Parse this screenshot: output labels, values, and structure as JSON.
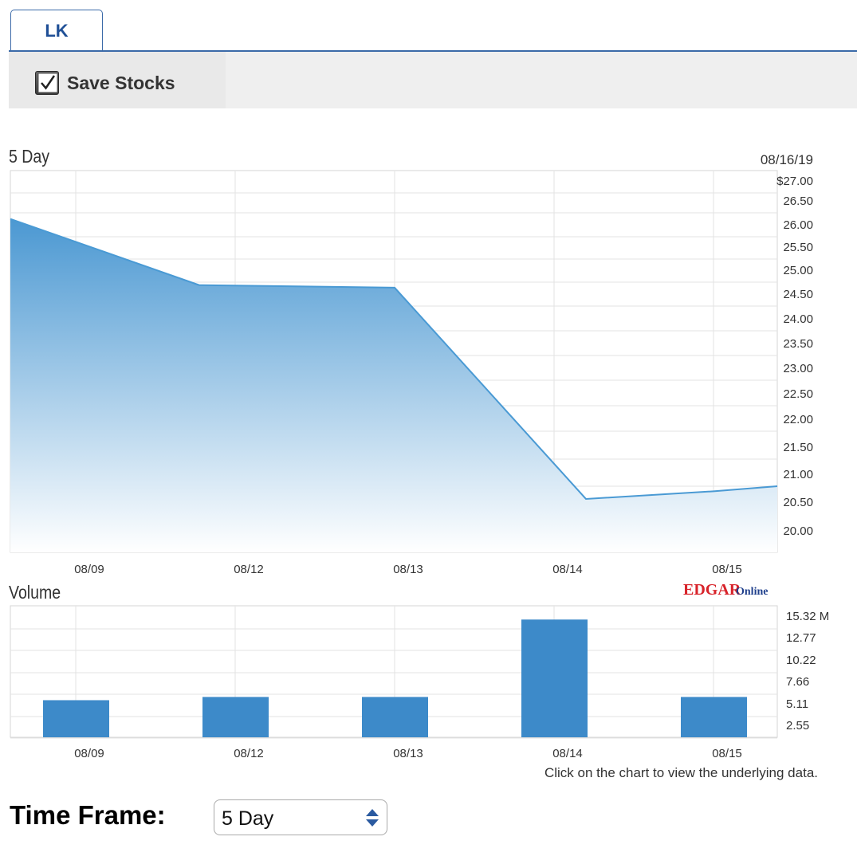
{
  "tabs": [
    {
      "label": "LK"
    }
  ],
  "save_stocks": {
    "label": "Save Stocks",
    "checked": true
  },
  "price_panel": {
    "title": "5 Day",
    "date": "08/16/19",
    "y_labels": [
      "$27.00",
      "26.50",
      "26.00",
      "25.50",
      "25.00",
      "24.50",
      "24.00",
      "23.50",
      "23.00",
      "22.50",
      "22.00",
      "21.50",
      "21.00",
      "20.50",
      "20.00"
    ],
    "x_labels": [
      "08/09",
      "08/12",
      "08/13",
      "08/14",
      "08/15"
    ]
  },
  "volume_panel": {
    "title": "Volume",
    "brand": {
      "edgar": "EDGAR",
      "online": "Online",
      "edgar_color": "#d8232a",
      "online_color": "#1f3f8c"
    },
    "y_labels": [
      "15.32 M",
      "12.77",
      "10.22",
      "7.66",
      "5.11",
      "2.55"
    ],
    "x_labels": [
      "08/09",
      "08/12",
      "08/13",
      "08/14",
      "08/15"
    ],
    "note": "Click on the chart to view the underlying data."
  },
  "time_frame": {
    "label": "Time Frame:",
    "selected": "5 Day"
  },
  "colors": {
    "accent": "#3b6aa8",
    "line": "#4a9ad4",
    "bar": "#3d8ac9"
  },
  "chart_data": [
    {
      "type": "area",
      "title": "5 Day",
      "x": [
        "08/09",
        "08/12",
        "08/13",
        "08/14",
        "08/15"
      ],
      "series": [
        {
          "x": [
            "08/09",
            "08/12",
            "08/13",
            "08/14",
            "08/15",
            "08/16"
          ],
          "values": [
            26.05,
            24.75,
            24.7,
            20.55,
            20.7,
            20.8
          ]
        }
      ],
      "ylim": [
        19.5,
        27.0
      ],
      "grid": true
    },
    {
      "type": "bar",
      "title": "Volume",
      "categories": [
        "08/09",
        "08/12",
        "08/13",
        "08/14",
        "08/15"
      ],
      "values": [
        4.6,
        5.0,
        5.0,
        14.6,
        5.0
      ],
      "ylim": [
        0,
        15.32
      ],
      "grid": true
    }
  ]
}
